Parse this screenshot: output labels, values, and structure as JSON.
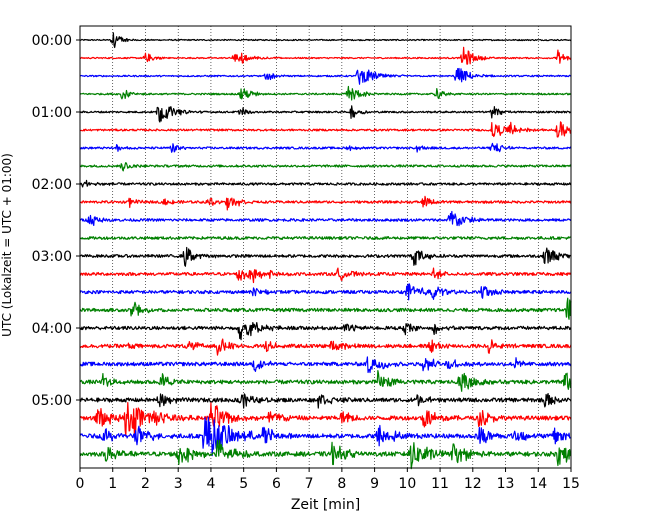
{
  "chart_data": {
    "type": "line",
    "subtype": "helicorder",
    "xlabel": "Zeit  [min]",
    "ylabel": "UTC (Lokalzeit = UTC + 01:00)",
    "xlim": [
      0,
      15
    ],
    "x_ticks": [
      0,
      1,
      2,
      3,
      4,
      5,
      6,
      7,
      8,
      9,
      10,
      11,
      12,
      13,
      14,
      15
    ],
    "y_ticks": [
      "00:00",
      "01:00",
      "02:00",
      "03:00",
      "04:00",
      "05:00"
    ],
    "trace_interval_min": 15,
    "trace_count": 24,
    "trace_colors": [
      "#000000",
      "#ff0000",
      "#0000ff",
      "#008000"
    ],
    "grid": "vertical dotted at each minute",
    "traces": [
      {
        "start": "00:00",
        "color": "black",
        "events": [
          [
            1.0,
            9,
            0.2
          ],
          [
            1.1,
            5,
            0.15
          ]
        ]
      },
      {
        "start": "00:15",
        "color": "red",
        "events": [
          [
            2.0,
            5,
            0.3
          ],
          [
            4.7,
            5,
            0.4
          ],
          [
            4.9,
            4,
            0.3
          ],
          [
            11.7,
            12,
            0.3
          ],
          [
            14.6,
            8,
            0.2
          ]
        ]
      },
      {
        "start": "00:30",
        "color": "blue",
        "events": [
          [
            5.7,
            6,
            0.2
          ],
          [
            8.5,
            10,
            0.5
          ],
          [
            11.5,
            10,
            0.4
          ]
        ]
      },
      {
        "start": "00:45",
        "color": "green",
        "events": [
          [
            1.3,
            8,
            0.2
          ],
          [
            4.9,
            8,
            0.3
          ],
          [
            8.2,
            10,
            0.3
          ],
          [
            10.9,
            6,
            0.2
          ]
        ]
      },
      {
        "start": "01:00",
        "color": "black",
        "events": [
          [
            2.4,
            12,
            0.4
          ],
          [
            4.9,
            6,
            0.2
          ],
          [
            8.3,
            9,
            0.2
          ],
          [
            12.6,
            8,
            0.2
          ]
        ]
      },
      {
        "start": "01:15",
        "color": "red",
        "events": [
          [
            12.6,
            10,
            0.3
          ],
          [
            13.1,
            8,
            0.3
          ],
          [
            14.6,
            10,
            0.4
          ]
        ]
      },
      {
        "start": "01:30",
        "color": "blue",
        "events": [
          [
            1.1,
            4,
            0.2
          ],
          [
            2.8,
            6,
            0.2
          ],
          [
            8.2,
            4,
            0.2
          ],
          [
            10.3,
            4,
            0.2
          ],
          [
            12.6,
            7,
            0.3
          ]
        ]
      },
      {
        "start": "01:45",
        "color": "green",
        "events": [
          [
            1.3,
            6,
            0.2
          ],
          [
            15.0,
            3,
            0.1
          ]
        ]
      },
      {
        "start": "02:00",
        "color": "black",
        "events": [
          [
            0.1,
            5,
            0.3
          ]
        ]
      },
      {
        "start": "02:15",
        "color": "red",
        "events": [
          [
            1.5,
            5,
            0.2
          ],
          [
            2.6,
            4,
            0.2
          ],
          [
            3.9,
            6,
            0.2
          ],
          [
            4.5,
            10,
            0.3
          ],
          [
            10.5,
            7,
            0.2
          ]
        ]
      },
      {
        "start": "02:30",
        "color": "blue",
        "events": [
          [
            0.3,
            8,
            0.2
          ],
          [
            11.3,
            12,
            0.4
          ]
        ]
      },
      {
        "start": "02:45",
        "color": "green",
        "events": []
      },
      {
        "start": "03:00",
        "color": "black",
        "events": [
          [
            3.2,
            12,
            0.3
          ],
          [
            10.2,
            10,
            0.3
          ],
          [
            14.2,
            12,
            0.3
          ]
        ]
      },
      {
        "start": "03:15",
        "color": "red",
        "events": [
          [
            4.8,
            10,
            0.4
          ],
          [
            5.3,
            7,
            0.3
          ],
          [
            5.8,
            8,
            0.2
          ],
          [
            7.9,
            9,
            0.3
          ],
          [
            10.8,
            7,
            0.2
          ]
        ]
      },
      {
        "start": "03:30",
        "color": "blue",
        "events": [
          [
            5.3,
            6,
            0.2
          ],
          [
            10.0,
            10,
            0.4
          ],
          [
            10.8,
            8,
            0.3
          ],
          [
            12.3,
            9,
            0.3
          ]
        ]
      },
      {
        "start": "03:45",
        "color": "green",
        "events": [
          [
            1.6,
            11,
            0.3
          ],
          [
            14.9,
            14,
            0.4
          ]
        ]
      },
      {
        "start": "04:00",
        "color": "black",
        "events": [
          [
            4.9,
            15,
            0.4
          ],
          [
            8.1,
            8,
            0.2
          ],
          [
            9.9,
            9,
            0.2
          ],
          [
            10.8,
            6,
            0.2
          ]
        ]
      },
      {
        "start": "04:15",
        "color": "red",
        "events": [
          [
            1.5,
            4,
            0.2
          ],
          [
            3.3,
            6,
            0.3
          ],
          [
            4.2,
            11,
            0.3
          ],
          [
            5.7,
            8,
            0.2
          ],
          [
            7.7,
            8,
            0.3
          ],
          [
            10.7,
            7,
            0.3
          ],
          [
            12.5,
            7,
            0.3
          ]
        ]
      },
      {
        "start": "04:30",
        "color": "blue",
        "events": [
          [
            5.3,
            9,
            0.3
          ],
          [
            8.8,
            11,
            0.4
          ],
          [
            10.5,
            9,
            0.3
          ],
          [
            11.2,
            7,
            0.3
          ],
          [
            13.3,
            6,
            0.2
          ]
        ]
      },
      {
        "start": "04:45",
        "color": "green",
        "events": [
          [
            0.7,
            8,
            0.2
          ],
          [
            2.5,
            9,
            0.3
          ],
          [
            9.1,
            11,
            0.3
          ],
          [
            11.6,
            12,
            0.4
          ],
          [
            14.8,
            12,
            0.3
          ]
        ]
      },
      {
        "start": "05:00",
        "color": "black",
        "events": [
          [
            2.4,
            8,
            0.3
          ],
          [
            4.9,
            10,
            0.3
          ],
          [
            7.3,
            9,
            0.3
          ],
          [
            10.2,
            8,
            0.3
          ],
          [
            14.2,
            9,
            0.3
          ]
        ]
      },
      {
        "start": "05:15",
        "color": "red",
        "events": [
          [
            0.5,
            12,
            0.4
          ],
          [
            1.4,
            22,
            0.6
          ],
          [
            2.3,
            9,
            0.3
          ],
          [
            4.0,
            16,
            0.5
          ],
          [
            5.8,
            12,
            0.3
          ],
          [
            8.0,
            9,
            0.3
          ],
          [
            10.5,
            12,
            0.4
          ],
          [
            12.2,
            10,
            0.3
          ]
        ]
      },
      {
        "start": "05:30",
        "color": "blue",
        "events": [
          [
            0.7,
            10,
            0.3
          ],
          [
            1.7,
            11,
            0.4
          ],
          [
            3.8,
            26,
            0.7
          ],
          [
            5.6,
            13,
            0.3
          ],
          [
            9.1,
            13,
            0.4
          ],
          [
            12.2,
            12,
            0.3
          ],
          [
            13.3,
            9,
            0.3
          ],
          [
            14.5,
            10,
            0.3
          ]
        ]
      },
      {
        "start": "05:45",
        "color": "green",
        "events": [
          [
            0.8,
            10,
            0.3
          ],
          [
            3.0,
            13,
            0.4
          ],
          [
            4.2,
            16,
            0.4
          ],
          [
            7.7,
            11,
            0.4
          ],
          [
            10.1,
            15,
            0.5
          ],
          [
            11.4,
            12,
            0.4
          ],
          [
            14.6,
            13,
            0.4
          ]
        ]
      }
    ]
  }
}
